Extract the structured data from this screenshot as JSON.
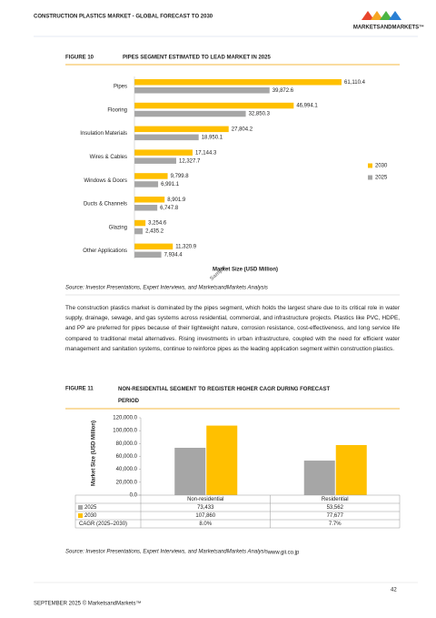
{
  "header": {
    "title": "CONSTRUCTION PLASTICS MARKET - GLOBAL FORECAST TO 2030",
    "logo": "MARKETSANDMARKETS™"
  },
  "chart_data": [
    {
      "figure_label": "FIGURE 10",
      "title": "PIPES SEGMENT ESTIMATED TO LEAD MARKET IN 2025",
      "type": "bar",
      "orientation": "horizontal",
      "x_label": "Market Size (USD Million)",
      "categories": [
        "Pipes",
        "Flooring",
        "Insulation Materials",
        "Wires & Cables",
        "Windows & Doors",
        "Ducts & Channels",
        "Glazing",
        "Other Applications"
      ],
      "series": [
        {
          "name": "2030",
          "color": "#ffc000",
          "values": [
            61110.4,
            46994.1,
            27804.2,
            17144.3,
            9799.8,
            8901.9,
            3254.6,
            11320.9
          ],
          "value_labels": [
            "61,110.4",
            "46,994.1",
            "27,804.2",
            "17,144.3",
            "9,799.8",
            "8,901.9",
            "3,254.6",
            "11,320.9"
          ]
        },
        {
          "name": "2025",
          "color": "#a6a6a6",
          "values": [
            39872.6,
            32850.3,
            18950.1,
            12327.7,
            6991.1,
            6747.8,
            2435.2,
            7934.4
          ],
          "value_labels": [
            "39,872.6",
            "32,850.3",
            "18,950.1",
            "12,327.7",
            "6,991.1",
            "6,747.8",
            "2,435.2",
            "7,934.4"
          ]
        }
      ],
      "legend": "right",
      "source": "Source: Investor Presentations, Expert Interviews, and MarketsandMarkets Analysis"
    },
    {
      "figure_label": "FIGURE 11",
      "title": "NON-RESIDENTIAL SEGMENT TO REGISTER HIGHER CAGR DURING FORECAST PERIOD",
      "type": "bar",
      "y_label": "Market Size (USD Million)",
      "categories": [
        "Non-residential",
        "Residential"
      ],
      "series": [
        {
          "name": "2025",
          "color": "#a6a6a6",
          "values": [
            73433,
            53562
          ],
          "value_labels": [
            "73,433",
            "53,562"
          ]
        },
        {
          "name": "2030",
          "color": "#ffc000",
          "values": [
            107860,
            77677
          ],
          "value_labels": [
            "107,860",
            "77,677"
          ]
        }
      ],
      "ylim": [
        0,
        120000
      ],
      "yticks": [
        {
          "value": 0,
          "label": "0.0"
        },
        {
          "value": 20000,
          "label": "20,000.0"
        },
        {
          "value": 40000,
          "label": "40,000.0"
        },
        {
          "value": 60000,
          "label": "60,000.0"
        },
        {
          "value": 80000,
          "label": "80,000.0"
        },
        {
          "value": 100000,
          "label": "100,000.0"
        },
        {
          "value": 120000,
          "label": "120,000.0"
        }
      ],
      "cagr_label": "CAGR (2025–2030)",
      "cagr_labels": [
        "8.0%",
        "7.7%"
      ],
      "source": "Source: Investor Presentations, Expert Interviews, and MarketsandMarkets Analysis"
    }
  ],
  "paragraph": "The construction plastics market is dominated by the pipes segment, which holds the largest share due to its critical role in water supply, drainage, sewage, and gas systems across residential, commercial, and infrastructure projects. Plastics like PVC, HDPE, and PP are preferred for pipes because of their lightweight nature, corrosion resistance, cost-effectiveness, and long service life compared to traditional metal alternatives. Rising investments in urban infrastructure, coupled with the need for efficient water management and sanitation systems, continue to reinforce pipes as the leading application segment within construction plastics.",
  "footer": {
    "date": "SEPTEMBER 2025 © MarketsandMarkets™",
    "page": "42"
  },
  "watermarks": [
    "Sample",
    "www.gii.co.jp"
  ]
}
